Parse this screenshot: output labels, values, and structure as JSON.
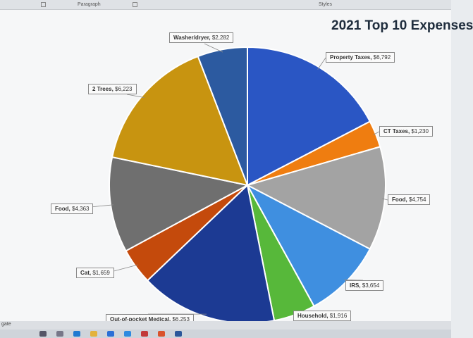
{
  "ribbon": {
    "group_left": "Paragraph",
    "styles_label": "Styles"
  },
  "status": {
    "text": "gate"
  },
  "colors": {
    "background": "#f6f7f8",
    "slice_border": "#ffffff"
  },
  "taskbar_icons": [
    "search-icon",
    "task-view-icon",
    "edge-icon",
    "explorer-icon",
    "store-icon",
    "mail-icon",
    "app-icon",
    "office-icon",
    "word-icon"
  ],
  "chart_data": {
    "type": "pie",
    "title": "2021 Top 10 Expenses",
    "slices": [
      {
        "label": "Property Taxes",
        "value_text": "$6,792",
        "value": 6792,
        "color": "#2a56c4"
      },
      {
        "label": "CT Taxes",
        "value_text": "$1,230",
        "value": 1230,
        "color": "#ef7d10"
      },
      {
        "label": "Food",
        "value_text": "$4,754",
        "value": 4754,
        "color": "#a3a3a3"
      },
      {
        "label": "IRS",
        "value_text": "$3,654",
        "value": 3654,
        "color": "#3f8fe0"
      },
      {
        "label": "Household",
        "value_text": "$1,916",
        "value": 1916,
        "color": "#57b83a"
      },
      {
        "label": "Out-of-pocket Medical",
        "value_text": "$6,253",
        "value": 6253,
        "color": "#1c3a93"
      },
      {
        "label": "Cat",
        "value_text": "$1,659",
        "value": 1659,
        "color": "#c44a0c"
      },
      {
        "label": "Food",
        "value_text": "$4,363",
        "value": 4363,
        "color": "#6f6f6f"
      },
      {
        "label": "2 Trees",
        "value_text": "$6,223",
        "value": 6223,
        "color": "#c89410"
      },
      {
        "label": "Washer/dryer",
        "value_text": "$2,282",
        "value": 2282,
        "color": "#2c5aa0"
      }
    ]
  }
}
